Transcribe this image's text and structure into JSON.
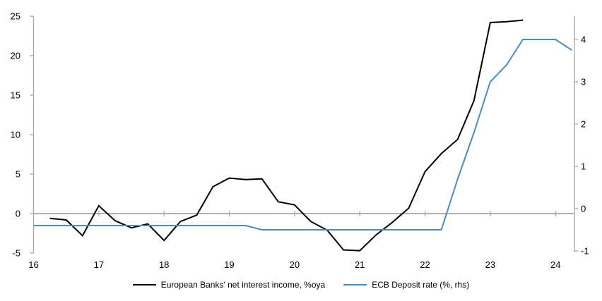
{
  "chart_data": {
    "type": "line",
    "title": "",
    "x_axis": {
      "ticks": [
        16,
        17,
        18,
        19,
        20,
        21,
        22,
        23,
        24
      ],
      "range": [
        16,
        24.29
      ]
    },
    "y_axis_left": {
      "ticks": [
        25,
        20,
        15,
        10,
        5,
        0,
        -5
      ],
      "range": [
        -5,
        25
      ]
    },
    "y_axis_right": {
      "ticks": [
        4,
        3,
        2,
        1,
        0,
        -1
      ],
      "range": [
        -1.05,
        4.55
      ]
    },
    "grid": "horizontal zero line only, with year tick marks on it",
    "legend_position": "bottom-center",
    "series": [
      {
        "name": "European Banks' net interest income, %oya",
        "axis": "left",
        "color": "#000000",
        "x": [
          16.25,
          16.5,
          16.75,
          17.0,
          17.25,
          17.5,
          17.75,
          18.0,
          18.25,
          18.5,
          18.75,
          19.0,
          19.25,
          19.5,
          19.75,
          20.0,
          20.25,
          20.5,
          20.75,
          21.0,
          21.25,
          21.5,
          21.75,
          22.0,
          22.25,
          22.5,
          22.75,
          23.0,
          23.25,
          23.5
        ],
        "values": [
          -0.6,
          -0.8,
          -2.8,
          1.0,
          -0.9,
          -1.8,
          -1.3,
          -3.4,
          -1.0,
          -0.2,
          3.4,
          4.5,
          4.3,
          4.4,
          1.5,
          1.1,
          -1.0,
          -2.1,
          -4.6,
          -4.7,
          -2.7,
          -1.1,
          0.7,
          5.3,
          7.6,
          9.4,
          14.3,
          24.2,
          24.3,
          24.5
        ]
      },
      {
        "name": "ECB Deposit rate (%, rhs)",
        "axis": "right",
        "color": "#4a8bc4",
        "x": [
          16.0,
          16.25,
          16.5,
          16.75,
          17.0,
          17.25,
          17.5,
          17.75,
          18.0,
          18.25,
          18.5,
          18.75,
          19.0,
          19.25,
          19.5,
          19.75,
          20.0,
          20.25,
          20.5,
          20.75,
          21.0,
          21.25,
          21.5,
          21.75,
          22.0,
          22.25,
          22.5,
          22.75,
          23.0,
          23.25,
          23.5,
          23.75,
          24.0,
          24.25
        ],
        "values": [
          -0.4,
          -0.4,
          -0.4,
          -0.4,
          -0.4,
          -0.4,
          -0.4,
          -0.4,
          -0.4,
          -0.4,
          -0.4,
          -0.4,
          -0.4,
          -0.4,
          -0.5,
          -0.5,
          -0.5,
          -0.5,
          -0.5,
          -0.5,
          -0.5,
          -0.5,
          -0.5,
          -0.5,
          -0.5,
          -0.5,
          0.7,
          1.8,
          3.0,
          3.4,
          4.0,
          4.0,
          4.0,
          3.75
        ]
      }
    ]
  },
  "legend": {
    "item1": "European Banks' net interest income, %oya",
    "item2": "ECB Deposit rate (%, rhs)"
  },
  "colors": {
    "axis": "#a6a6a6",
    "text": "#000000",
    "background": "#ffffff",
    "series_black": "#000000",
    "series_blue": "#4a8bc4"
  }
}
